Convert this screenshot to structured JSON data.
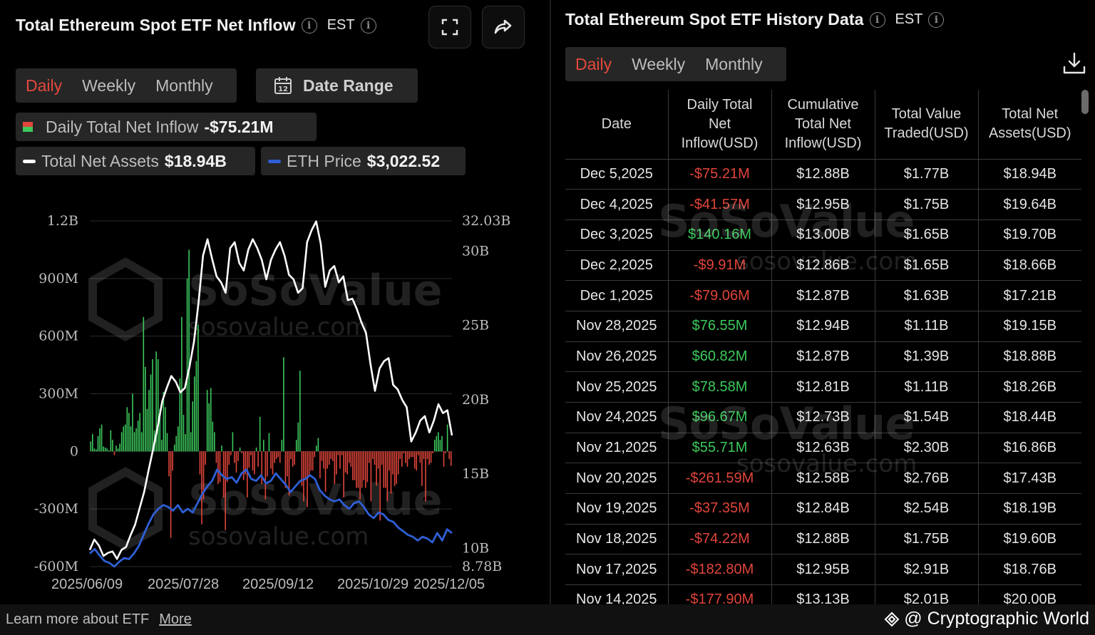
{
  "left_panel": {
    "title": "Total Ethereum Spot ETF Net Inflow",
    "timezone": "EST",
    "tabs": [
      {
        "label": "Daily",
        "active": true
      },
      {
        "label": "Weekly",
        "active": false
      },
      {
        "label": "Monthly",
        "active": false
      }
    ],
    "date_range_label": "Date Range",
    "calendar_day": "12",
    "legend": {
      "inflow_label": "Daily Total Net Inflow",
      "inflow_value": "-$75.21M",
      "assets_label": "Total Net Assets",
      "assets_value": "$18.94B",
      "eth_label": "ETH Price",
      "eth_value": "$3,022.52"
    },
    "watermark_text": "SoSoValue",
    "watermark_sub": "sosovalue.com"
  },
  "colors": {
    "inflow_positive": "#3cc95c",
    "inflow_negative": "#e0453b",
    "assets_line": "#ffffff",
    "eth_line": "#2f5fd6",
    "active_tab": "#e4483c"
  },
  "chart_data": {
    "type": "bar",
    "title": "Total Ethereum Spot ETF Net Inflow",
    "x_tick_labels": [
      "2025/06/09",
      "2025/07/28",
      "2025/09/12",
      "2025/10/29",
      "2025/12/05"
    ],
    "left_axis": {
      "label": "Daily Total Net Inflow",
      "ticks": [
        "1.2B",
        "900M",
        "600M",
        "300M",
        "0",
        "-300M",
        "-600M"
      ],
      "range": [
        -600000000,
        1200000000
      ]
    },
    "right_axis": {
      "label": "Total Net Assets",
      "ticks": [
        "32.03B",
        "30B",
        "25B",
        "20B",
        "15B",
        "10B",
        "8.78B"
      ],
      "range": [
        8.78,
        32.03
      ]
    },
    "series": [
      {
        "name": "Daily Total Net Inflow (M USD)",
        "kind": "bar",
        "values": [
          52,
          90,
          15,
          10,
          80,
          120,
          140,
          25,
          20,
          15,
          5,
          110,
          60,
          -20,
          30,
          15,
          40,
          100,
          130,
          140,
          230,
          200,
          130,
          300,
          100,
          120,
          160,
          200,
          100,
          700,
          440,
          220,
          320,
          400,
          480,
          110,
          520,
          480,
          220,
          60,
          310,
          230,
          95,
          -130,
          -450,
          -100,
          35,
          80,
          130,
          380,
          700,
          190,
          90,
          900,
          1050,
          100,
          260,
          390,
          470,
          660,
          -120,
          -380,
          -250,
          -70,
          320,
          250,
          330,
          155,
          100,
          -60,
          -170,
          -160,
          30,
          -240,
          -410,
          -160,
          -70,
          -20,
          100,
          -60,
          -110,
          -50,
          20,
          -10,
          -150,
          -120,
          -240,
          -85,
          -20,
          -100,
          -120,
          20,
          -80,
          180,
          -170,
          60,
          -250,
          -130,
          95,
          -90,
          -120,
          -60,
          -40,
          -30,
          -60,
          60,
          490,
          -190,
          -130,
          -230,
          -40,
          -80,
          -70,
          60,
          150,
          420,
          -180,
          -260,
          -150,
          -290,
          -130,
          -100,
          -100,
          -30,
          30,
          70,
          -140,
          -50,
          -90,
          -210,
          -90,
          -70,
          -40,
          -50,
          -170,
          -120,
          -20,
          -90,
          -20,
          -240,
          -110,
          -120,
          -60,
          -80,
          -150,
          -150,
          -190,
          -190,
          -250,
          -190,
          -150,
          -190,
          -160,
          -60,
          -260,
          -40,
          -70,
          -180,
          -90,
          -360,
          -70,
          -190,
          -190,
          -260,
          -100,
          -220,
          -120,
          -180,
          -170,
          -120,
          -40,
          -80,
          -10,
          -60,
          -80,
          -40,
          -30,
          -30,
          -90,
          -100,
          -20,
          -60,
          -180,
          -40,
          -260,
          -40,
          -70,
          -60,
          -10,
          60,
          80,
          100,
          60,
          80,
          -80,
          -10,
          140,
          -40,
          -75
        ]
      },
      {
        "name": "Total Net Assets (B USD)",
        "kind": "line",
        "values": [
          9.9,
          10.6,
          10.2,
          9.5,
          9.7,
          9.8,
          9.3,
          9.9,
          10.1,
          10.9,
          11.6,
          12.7,
          13.8,
          15.3,
          16.7,
          18.2,
          19.9,
          20.8,
          21.6,
          21.2,
          20.5,
          20.8,
          22.2,
          23.9,
          26.5,
          29.7,
          30.8,
          29.5,
          28.3,
          27.9,
          27.2,
          30.2,
          30.6,
          29.2,
          28.7,
          30.1,
          30.8,
          30.2,
          29.4,
          28.1,
          29.4,
          30.1,
          30.6,
          29.7,
          28.4,
          28.1,
          27.2,
          27.5,
          30.6,
          31.4,
          32.0,
          30.5,
          27.6,
          28.7,
          29.0,
          27.9,
          28.3,
          26.7,
          26.8,
          26.1,
          25.2,
          24.5,
          22.4,
          20.6,
          22.1,
          22.6,
          22.8,
          21.0,
          20.7,
          20.0,
          19.5,
          17.2,
          17.8,
          18.6,
          18.9,
          17.8,
          18.6,
          19.7,
          19.1,
          19.3,
          17.6
        ]
      },
      {
        "name": "ETH Price (USD)",
        "kind": "line",
        "values": [
          2500,
          2620,
          2450,
          2300,
          2250,
          2150,
          2280,
          2380,
          2350,
          2500,
          2700,
          3000,
          3300,
          3550,
          3700,
          3800,
          3750,
          3650,
          3800,
          3600,
          3700,
          3600,
          3850,
          4100,
          4300,
          4450,
          4750,
          4600,
          4500,
          4550,
          4400,
          4650,
          4750,
          4500,
          4450,
          4600,
          4380,
          4450,
          4650,
          4500,
          4350,
          4150,
          4300,
          4450,
          4500,
          4600,
          4500,
          4200,
          4050,
          3950,
          3900,
          3950,
          3800,
          3700,
          3850,
          3900,
          3750,
          3550,
          3450,
          3600,
          3550,
          3400,
          3350,
          3200,
          3100,
          3000,
          2950,
          2850,
          2950,
          2900,
          2800,
          3050,
          2850,
          3150,
          3050
        ]
      }
    ]
  },
  "right_panel": {
    "title": "Total Ethereum Spot ETF History Data",
    "timezone": "EST",
    "tabs": [
      {
        "label": "Daily",
        "active": true
      },
      {
        "label": "Weekly",
        "active": false
      },
      {
        "label": "Monthly",
        "active": false
      }
    ],
    "columns": [
      [
        "Date"
      ],
      [
        "Daily Total",
        "Net",
        "Inflow(USD)"
      ],
      [
        "Cumulative",
        "Total Net",
        "Inflow(USD)"
      ],
      [
        "Total Value",
        "Traded(USD)"
      ],
      [
        "Total Net",
        "Assets(USD)"
      ]
    ],
    "rows": [
      {
        "date": "Dec 5,2025",
        "daily": "-$75.21M",
        "cumulative": "$12.88B",
        "traded": "$1.77B",
        "assets": "$18.94B",
        "sign": "neg"
      },
      {
        "date": "Dec 4,2025",
        "daily": "-$41.57M",
        "cumulative": "$12.95B",
        "traded": "$1.75B",
        "assets": "$19.64B",
        "sign": "neg"
      },
      {
        "date": "Dec 3,2025",
        "daily": "$140.16M",
        "cumulative": "$13.00B",
        "traded": "$1.65B",
        "assets": "$19.70B",
        "sign": "pos"
      },
      {
        "date": "Dec 2,2025",
        "daily": "-$9.91M",
        "cumulative": "$12.86B",
        "traded": "$1.65B",
        "assets": "$18.66B",
        "sign": "neg"
      },
      {
        "date": "Dec 1,2025",
        "daily": "-$79.06M",
        "cumulative": "$12.87B",
        "traded": "$1.63B",
        "assets": "$17.21B",
        "sign": "neg"
      },
      {
        "date": "Nov 28,2025",
        "daily": "$76.55M",
        "cumulative": "$12.94B",
        "traded": "$1.11B",
        "assets": "$19.15B",
        "sign": "pos"
      },
      {
        "date": "Nov 26,2025",
        "daily": "$60.82M",
        "cumulative": "$12.87B",
        "traded": "$1.39B",
        "assets": "$18.88B",
        "sign": "pos"
      },
      {
        "date": "Nov 25,2025",
        "daily": "$78.58M",
        "cumulative": "$12.81B",
        "traded": "$1.11B",
        "assets": "$18.26B",
        "sign": "pos"
      },
      {
        "date": "Nov 24,2025",
        "daily": "$96.67M",
        "cumulative": "$12.73B",
        "traded": "$1.54B",
        "assets": "$18.44B",
        "sign": "pos"
      },
      {
        "date": "Nov 21,2025",
        "daily": "$55.71M",
        "cumulative": "$12.63B",
        "traded": "$2.30B",
        "assets": "$16.86B",
        "sign": "pos"
      },
      {
        "date": "Nov 20,2025",
        "daily": "-$261.59M",
        "cumulative": "$12.58B",
        "traded": "$2.76B",
        "assets": "$17.43B",
        "sign": "neg"
      },
      {
        "date": "Nov 19,2025",
        "daily": "-$37.35M",
        "cumulative": "$12.84B",
        "traded": "$2.54B",
        "assets": "$18.19B",
        "sign": "neg"
      },
      {
        "date": "Nov 18,2025",
        "daily": "-$74.22M",
        "cumulative": "$12.88B",
        "traded": "$1.75B",
        "assets": "$19.60B",
        "sign": "neg"
      },
      {
        "date": "Nov 17,2025",
        "daily": "-$182.80M",
        "cumulative": "$12.95B",
        "traded": "$2.91B",
        "assets": "$18.76B",
        "sign": "neg"
      },
      {
        "date": "Nov 14,2025",
        "daily": "-$177.90M",
        "cumulative": "$13.13B",
        "traded": "$2.01B",
        "assets": "$20.00B",
        "sign": "neg"
      }
    ]
  },
  "footer": {
    "learn_text": "Learn more about ETF",
    "more_link": "More",
    "brand": "@ Cryptographic World"
  }
}
